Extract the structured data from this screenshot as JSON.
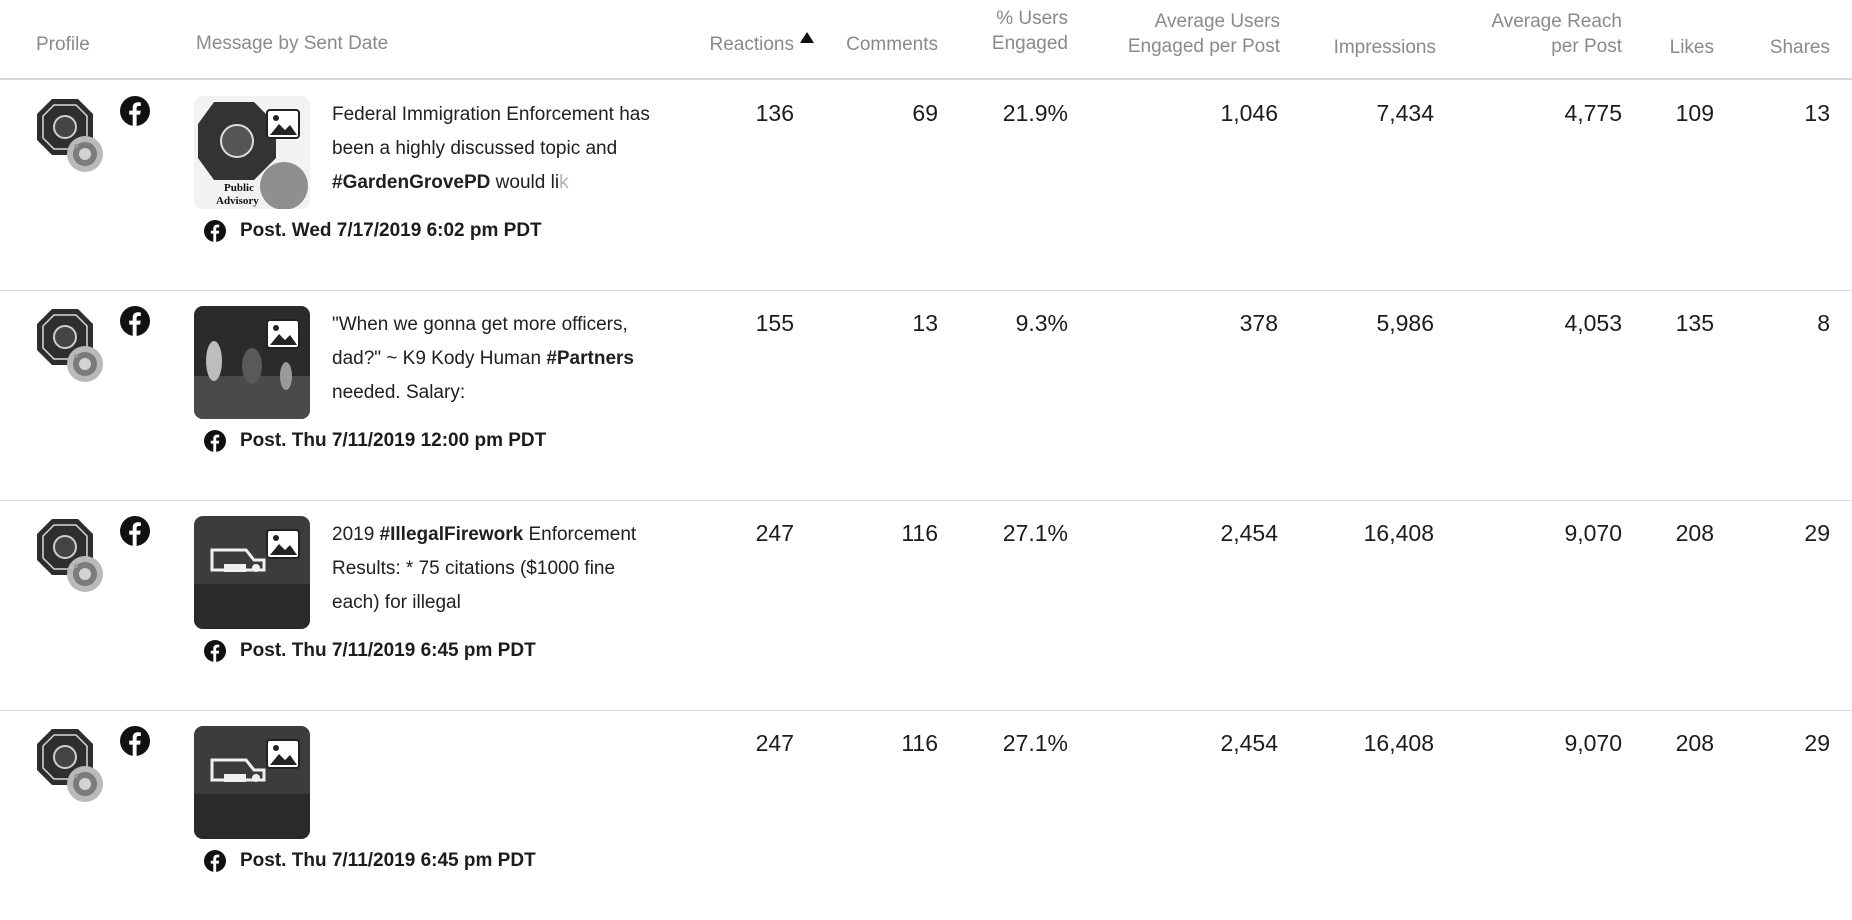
{
  "columns": {
    "profile": "Profile",
    "message": "Message by Sent Date",
    "reactions": "Reactions",
    "comments": "Comments",
    "pct_users_engaged": [
      "% Users",
      "Engaged"
    ],
    "avg_users_engaged": [
      "Average Users",
      "Engaged per Post"
    ],
    "impressions": "Impressions",
    "avg_reach": [
      "Average Reach",
      "per Post"
    ],
    "likes": "Likes",
    "shares": "Shares"
  },
  "sort": {
    "column": "reactions",
    "direction": "ascending-arrow"
  },
  "icons": {
    "network": "facebook-icon",
    "thumbnail_overlay": "image-icon",
    "profile": "police-badge-avatar"
  },
  "colors": {
    "header_text": "#8a8a8a",
    "divider": "#d8d8d8",
    "text": "#1c1c1c"
  },
  "rows": [
    {
      "message_segments": [
        {
          "text": "Federal Immigration Enforcement has been a highly discussed topic and ",
          "bold": false
        },
        {
          "text": "#GardenGrovePD",
          "bold": true
        },
        {
          "text": " would li",
          "bold": false
        },
        {
          "text": "k",
          "fade": true
        }
      ],
      "thumb_caption": "Public Advisory",
      "post_label": "Post. Wed 7/17/2019 6:02 pm PDT",
      "reactions": "136",
      "comments": "69",
      "pct_users_engaged": "21.9%",
      "avg_users_engaged": "1,046",
      "impressions": "7,434",
      "avg_reach": "4,775",
      "likes": "109",
      "shares": "13"
    },
    {
      "message_segments": [
        {
          "text": "\"When we gonna get more officers, dad?\" ~ K9 Kody Human ",
          "bold": false
        },
        {
          "text": "#Partners",
          "bold": true
        },
        {
          "text": " needed. Salary:",
          "bold": false
        }
      ],
      "thumb_caption": "",
      "post_label": "Post. Thu 7/11/2019 12:00 pm PDT",
      "reactions": "155",
      "comments": "13",
      "pct_users_engaged": "9.3%",
      "avg_users_engaged": "378",
      "impressions": "5,986",
      "avg_reach": "4,053",
      "likes": "135",
      "shares": "8"
    },
    {
      "message_segments": [
        {
          "text": "2019 ",
          "bold": false
        },
        {
          "text": "#IllegalFirework",
          "bold": true
        },
        {
          "text": " Enforcement Results: * 75 citations ($1000 fine each) for illegal",
          "bold": false
        }
      ],
      "thumb_caption": "",
      "post_label": "Post. Thu 7/11/2019 6:45 pm PDT",
      "reactions": "247",
      "comments": "116",
      "pct_users_engaged": "27.1%",
      "avg_users_engaged": "2,454",
      "impressions": "16,408",
      "avg_reach": "9,070",
      "likes": "208",
      "shares": "29"
    },
    {
      "message_segments": [],
      "thumb_caption": "",
      "post_label": "Post. Thu 7/11/2019 6:45 pm PDT",
      "reactions": "247",
      "comments": "116",
      "pct_users_engaged": "27.1%",
      "avg_users_engaged": "2,454",
      "impressions": "16,408",
      "avg_reach": "9,070",
      "likes": "208",
      "shares": "29"
    }
  ]
}
